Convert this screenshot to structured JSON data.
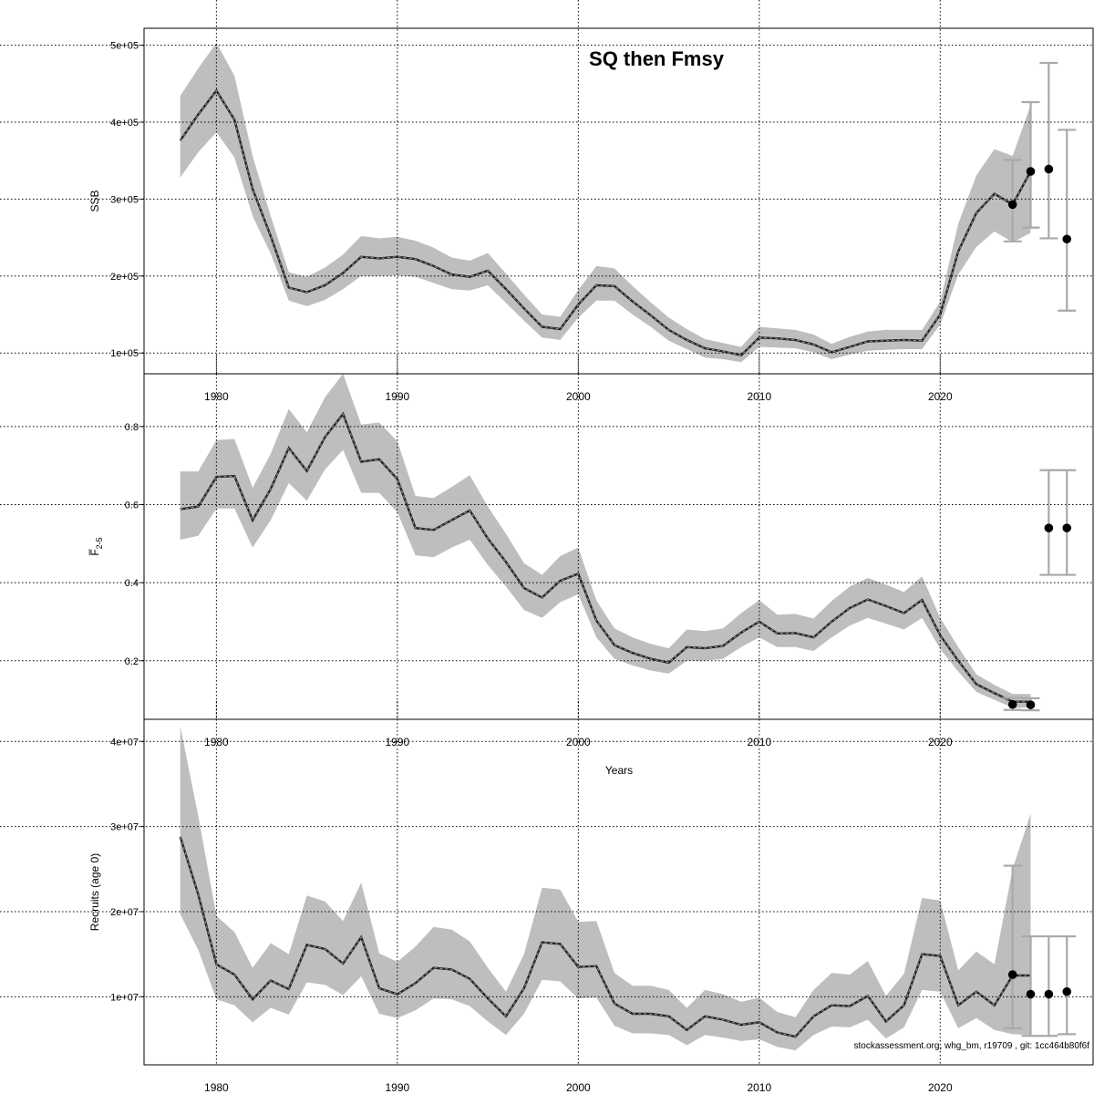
{
  "title": "SQ then Fmsy",
  "footer": "stockassessment.org, whg_bm, r19709 , git: 1cc464b80f6f",
  "colors": {
    "band": "#bebebe",
    "line": "#000000",
    "grid": "#000000",
    "errorbar": "#a9a9a9"
  },
  "chart_data": [
    {
      "type": "line",
      "id": "ssb",
      "ylabel": "SSB",
      "xlabel": "",
      "xlim": [
        1976,
        2028.5
      ],
      "ylim": [
        73000,
        522000
      ],
      "yticks": [
        100000,
        200000,
        300000,
        400000,
        500000
      ],
      "ytick_labels": [
        "1e+05",
        "2e+05",
        "3e+05",
        "4e+05",
        "5e+05"
      ],
      "xticks": [
        1980,
        1990,
        2000,
        2010,
        2020
      ],
      "xtick_labels": [
        "1980",
        "1990",
        "2000",
        "2010",
        "2020"
      ],
      "grid": true,
      "years": [
        1978,
        1979,
        1980,
        1981,
        1982,
        1983,
        1984,
        1985,
        1986,
        1987,
        1988,
        1989,
        1990,
        1991,
        1992,
        1993,
        1994,
        1995,
        1996,
        1997,
        1998,
        1999,
        2000,
        2001,
        2002,
        2003,
        2004,
        2005,
        2006,
        2007,
        2008,
        2009,
        2010,
        2011,
        2012,
        2013,
        2014,
        2015,
        2016,
        2017,
        2018,
        2019,
        2020,
        2021,
        2022,
        2023,
        2024,
        2025
      ],
      "estimate": [
        376000,
        410000,
        441000,
        403000,
        313000,
        252000,
        185000,
        179000,
        188000,
        204000,
        225000,
        223000,
        225000,
        222000,
        213000,
        202000,
        199000,
        207000,
        183000,
        158000,
        134000,
        131000,
        163000,
        188000,
        187000,
        167000,
        149000,
        130000,
        117000,
        106000,
        102000,
        97000,
        120000,
        119000,
        117000,
        111000,
        101000,
        108000,
        115000,
        116000,
        117000,
        116000,
        150000,
        232000,
        282000,
        307000,
        293000,
        336000
      ],
      "lower": [
        328000,
        361000,
        387000,
        354000,
        278000,
        229000,
        168000,
        161000,
        169000,
        183000,
        200000,
        200000,
        201000,
        199000,
        191000,
        183000,
        181000,
        188000,
        165000,
        142000,
        120000,
        117000,
        146000,
        168000,
        168000,
        150000,
        134000,
        116000,
        105000,
        94000,
        92000,
        88000,
        108000,
        107000,
        106000,
        101000,
        92000,
        98000,
        103000,
        104000,
        105000,
        105000,
        137000,
        202000,
        238000,
        258000,
        244000,
        256000
      ],
      "upper": [
        434000,
        470000,
        503000,
        460000,
        356000,
        278000,
        205000,
        199000,
        211000,
        228000,
        252000,
        249000,
        251000,
        246000,
        237000,
        224000,
        220000,
        230000,
        203000,
        176000,
        150000,
        147000,
        182000,
        213000,
        210000,
        187000,
        166000,
        146000,
        131000,
        118000,
        113000,
        108000,
        134000,
        132000,
        130000,
        124000,
        112000,
        121000,
        128000,
        130000,
        130000,
        130000,
        167000,
        268000,
        331000,
        365000,
        356000,
        422000
      ],
      "forecast_points": [
        {
          "x": 2024,
          "y": 293000,
          "lo": 245000,
          "hi": 351000
        },
        {
          "x": 2025,
          "y": 336000,
          "lo": 263000,
          "hi": 426000
        },
        {
          "x": 2026,
          "y": 339000,
          "lo": 249000,
          "hi": 477000
        },
        {
          "x": 2027,
          "y": 248000,
          "lo": 155000,
          "hi": 390000
        }
      ]
    },
    {
      "type": "line",
      "id": "fbar",
      "ylabel": "F̅",
      "ylabel_sub": "2-5",
      "xlabel": "Years",
      "xlim": [
        1976,
        2028.5
      ],
      "ylim": [
        0.05,
        0.935
      ],
      "yticks": [
        0.2,
        0.4,
        0.6,
        0.8
      ],
      "ytick_labels": [
        "0.2",
        "0.4",
        "0.6",
        "0.8"
      ],
      "xticks": [
        1980,
        1990,
        2000,
        2010,
        2020
      ],
      "xtick_labels": [
        "1980",
        "1990",
        "2000",
        "2010",
        "2020"
      ],
      "grid": true,
      "years": [
        1978,
        1979,
        1980,
        1981,
        1982,
        1983,
        1984,
        1985,
        1986,
        1987,
        1988,
        1989,
        1990,
        1991,
        1992,
        1993,
        1994,
        1995,
        1996,
        1997,
        1998,
        1999,
        2000,
        2001,
        2002,
        2003,
        2004,
        2005,
        2006,
        2007,
        2008,
        2009,
        2010,
        2011,
        2012,
        2013,
        2014,
        2015,
        2016,
        2017,
        2018,
        2019,
        2020,
        2021,
        2022,
        2023,
        2024,
        2025
      ],
      "estimate": [
        0.588,
        0.595,
        0.671,
        0.673,
        0.56,
        0.64,
        0.745,
        0.686,
        0.773,
        0.832,
        0.71,
        0.716,
        0.665,
        0.54,
        0.535,
        0.56,
        0.585,
        0.513,
        0.453,
        0.386,
        0.362,
        0.405,
        0.423,
        0.303,
        0.24,
        0.22,
        0.205,
        0.195,
        0.235,
        0.232,
        0.238,
        0.272,
        0.3,
        0.27,
        0.271,
        0.26,
        0.3,
        0.335,
        0.357,
        0.34,
        0.322,
        0.356,
        0.265,
        0.2,
        0.14,
        0.117,
        0.095,
        0.095
      ],
      "lower": [
        0.51,
        0.52,
        0.59,
        0.59,
        0.49,
        0.56,
        0.655,
        0.61,
        0.69,
        0.74,
        0.63,
        0.63,
        0.58,
        0.47,
        0.465,
        0.49,
        0.51,
        0.445,
        0.39,
        0.33,
        0.31,
        0.35,
        0.37,
        0.26,
        0.205,
        0.188,
        0.175,
        0.167,
        0.2,
        0.2,
        0.205,
        0.235,
        0.26,
        0.235,
        0.235,
        0.225,
        0.26,
        0.29,
        0.31,
        0.295,
        0.28,
        0.31,
        0.23,
        0.172,
        0.12,
        0.1,
        0.08,
        0.08
      ],
      "upper": [
        0.685,
        0.685,
        0.765,
        0.768,
        0.643,
        0.73,
        0.845,
        0.785,
        0.875,
        0.935,
        0.805,
        0.81,
        0.762,
        0.622,
        0.617,
        0.645,
        0.675,
        0.595,
        0.525,
        0.45,
        0.42,
        0.468,
        0.49,
        0.354,
        0.283,
        0.26,
        0.243,
        0.232,
        0.28,
        0.276,
        0.283,
        0.322,
        0.355,
        0.318,
        0.32,
        0.308,
        0.353,
        0.39,
        0.412,
        0.395,
        0.376,
        0.416,
        0.31,
        0.235,
        0.165,
        0.138,
        0.115,
        0.115
      ],
      "forecast_points": [
        {
          "x": 2024,
          "y": 0.088,
          "lo": 0.074,
          "hi": 0.105
        },
        {
          "x": 2025,
          "y": 0.087,
          "lo": 0.073,
          "hi": 0.104
        },
        {
          "x": 2026,
          "y": 0.54,
          "lo": 0.42,
          "hi": 0.688
        },
        {
          "x": 2027,
          "y": 0.54,
          "lo": 0.42,
          "hi": 0.688
        }
      ]
    },
    {
      "type": "line",
      "id": "recruits",
      "ylabel": "Recruits (age 0)",
      "xlabel": "Years",
      "xlim": [
        1976,
        2028.5
      ],
      "ylim": [
        2000000,
        42600000
      ],
      "yticks": [
        10000000,
        20000000,
        30000000,
        40000000
      ],
      "ytick_labels": [
        "1e+07",
        "2e+07",
        "3e+07",
        "4e+07"
      ],
      "xticks": [
        1980,
        1990,
        2000,
        2010,
        2020
      ],
      "xtick_labels": [
        "1980",
        "1990",
        "2000",
        "2010",
        "2020"
      ],
      "grid": true,
      "years": [
        1978,
        1979,
        1980,
        1981,
        1982,
        1983,
        1984,
        1985,
        1986,
        1987,
        1988,
        1989,
        1990,
        1991,
        1992,
        1993,
        1994,
        1995,
        1996,
        1997,
        1998,
        1999,
        2000,
        2001,
        2002,
        2003,
        2004,
        2005,
        2006,
        2007,
        2008,
        2009,
        2010,
        2011,
        2012,
        2013,
        2014,
        2015,
        2016,
        2017,
        2018,
        2019,
        2020,
        2021,
        2022,
        2023,
        2024,
        2025
      ],
      "estimate": [
        28800000,
        22000000,
        13800000,
        12600000,
        9700000,
        11900000,
        10900000,
        16100000,
        15600000,
        13900000,
        17000000,
        11000000,
        10300000,
        11600000,
        13400000,
        13200000,
        12100000,
        9800000,
        7700000,
        11000000,
        16400000,
        16200000,
        13500000,
        13600000,
        9200000,
        8000000,
        8000000,
        7700000,
        6100000,
        7700000,
        7300000,
        6700000,
        7000000,
        5800000,
        5300000,
        7700000,
        9000000,
        8900000,
        10100000,
        7100000,
        9000000,
        15000000,
        14800000,
        9000000,
        10600000,
        9000000,
        12500000,
        12500000
      ],
      "lower": [
        19700000,
        15500000,
        9700000,
        9000000,
        7000000,
        8700000,
        7900000,
        11700000,
        11400000,
        10200000,
        12400000,
        8000000,
        7500000,
        8400000,
        9800000,
        9700000,
        8900000,
        7100000,
        5500000,
        8000000,
        12000000,
        11800000,
        9800000,
        9900000,
        6600000,
        5700000,
        5700000,
        5500000,
        4300000,
        5500000,
        5200000,
        4800000,
        5000000,
        4100000,
        3700000,
        5500000,
        6500000,
        6400000,
        7300000,
        5100000,
        6400000,
        10800000,
        10600000,
        6300000,
        7500000,
        6100000,
        5600000,
        5500000
      ],
      "upper": [
        41800000,
        31200000,
        19500000,
        17600000,
        13400000,
        16300000,
        15000000,
        21900000,
        21200000,
        18900000,
        23400000,
        15100000,
        14100000,
        15900000,
        18200000,
        17900000,
        16500000,
        13400000,
        10600000,
        15000000,
        22800000,
        22600000,
        18800000,
        18900000,
        12800000,
        11300000,
        11300000,
        10800000,
        8700000,
        10800000,
        10300000,
        9400000,
        9900000,
        8200000,
        7600000,
        10800000,
        12800000,
        12600000,
        14200000,
        10100000,
        12700000,
        21600000,
        21300000,
        13100000,
        15300000,
        13800000,
        25000000,
        31500000
      ],
      "forecast_points": [
        {
          "x": 2024,
          "y": 12600000,
          "lo": 6300000,
          "hi": 25400000
        },
        {
          "x": 2025,
          "y": 10300000,
          "lo": 5400000,
          "hi": 17100000
        },
        {
          "x": 2026,
          "y": 10300000,
          "lo": 5400000,
          "hi": 17100000
        },
        {
          "x": 2027,
          "y": 10600000,
          "lo": 5600000,
          "hi": 17100000
        }
      ]
    }
  ]
}
